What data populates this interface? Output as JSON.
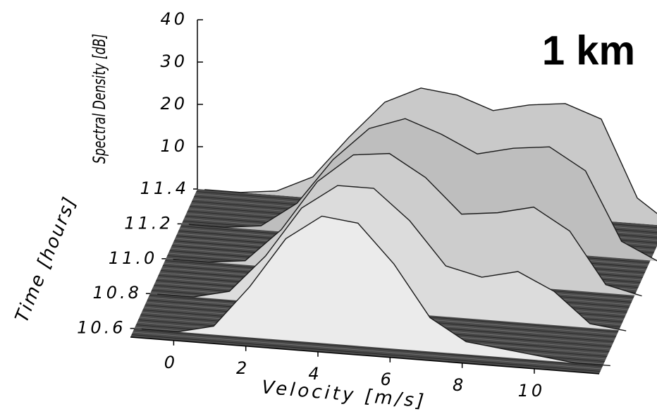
{
  "chart_data": {
    "type": "surface",
    "title": "1 km",
    "x_label": "Velocity [m/s]",
    "y_label": "Time [hours]",
    "z_label": "Spectral Density [dB]",
    "x": [
      -1,
      0,
      1,
      2,
      3,
      4,
      5,
      6,
      7,
      8,
      9,
      10,
      11,
      12
    ],
    "series": [
      {
        "time": 11.4,
        "values": [
          0,
          0,
          1,
          5,
          15,
          24,
          28,
          27,
          24,
          26,
          27,
          24,
          6,
          0
        ]
      },
      {
        "time": 11.2,
        "values": [
          0,
          0,
          1,
          7,
          18,
          26,
          29,
          26,
          22,
          24,
          25,
          20,
          4,
          0
        ]
      },
      {
        "time": 11.0,
        "values": [
          0,
          0,
          1,
          9,
          21,
          28,
          29,
          24,
          16,
          17,
          19,
          14,
          2,
          0
        ]
      },
      {
        "time": 10.8,
        "values": [
          0,
          0,
          2,
          11,
          23,
          29,
          29,
          22,
          12,
          10,
          12,
          8,
          1,
          0
        ]
      },
      {
        "time": 10.6,
        "values": [
          0,
          0,
          2,
          12,
          24,
          30,
          29,
          20,
          8,
          3,
          2,
          1,
          0,
          0
        ]
      }
    ],
    "xlim": [
      -1.2,
      11.8
    ],
    "xticks": [
      0,
      2,
      4,
      6,
      8,
      10
    ],
    "ylim": [
      10.55,
      11.4
    ],
    "yticks": [
      10.6,
      10.8,
      {
        "value": 11,
        "label": "11.0"
      },
      11.2,
      11.4
    ],
    "zlim": [
      0,
      40
    ],
    "zticks": [
      10,
      20,
      30,
      40
    ],
    "color": "#c9c9c9",
    "floor_color": "#4a4a4a"
  }
}
